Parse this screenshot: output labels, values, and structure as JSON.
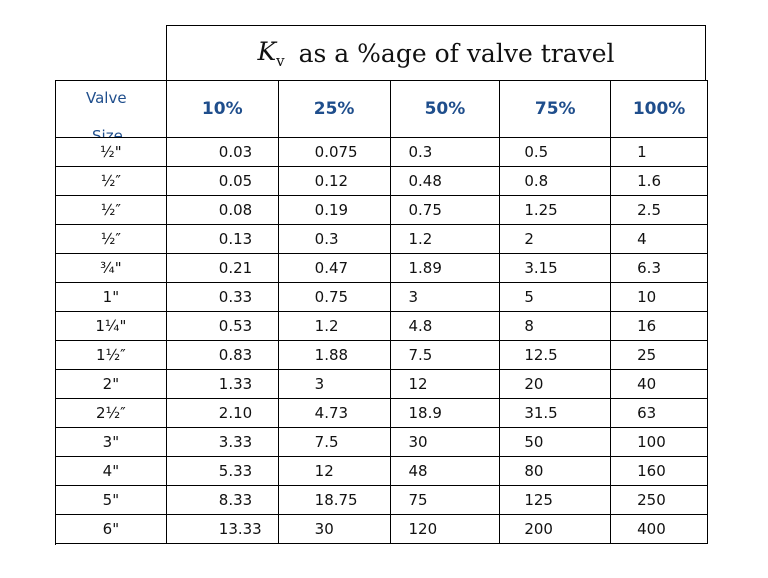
{
  "title": {
    "symbol": "K",
    "subscript": "v",
    "text": "as a %age of valve travel"
  },
  "header": {
    "first_col": "Valve",
    "first_col_cut": "Size",
    "columns": [
      "10%",
      "25%",
      "50%",
      "75%",
      "100%"
    ]
  },
  "rows": [
    {
      "size": "½\"",
      "values": [
        "0.03",
        "0.075",
        "0.3",
        "0.5",
        "1"
      ]
    },
    {
      "size": "½″",
      "values": [
        "0.05",
        "0.12",
        "0.48",
        "0.8",
        "1.6"
      ]
    },
    {
      "size": "½″",
      "values": [
        "0.08",
        "0.19",
        "0.75",
        "1.25",
        "2.5"
      ]
    },
    {
      "size": "½″",
      "values": [
        "0.13",
        "0.3",
        "1.2",
        "2",
        "4"
      ]
    },
    {
      "size": "¾\"",
      "values": [
        "0.21",
        "0.47",
        "1.89",
        "3.15",
        "6.3"
      ]
    },
    {
      "size": "1\"",
      "values": [
        "0.33",
        "0.75",
        "3",
        "5",
        "10"
      ]
    },
    {
      "size": "1¼\"",
      "values": [
        "0.53",
        "1.2",
        "4.8",
        "8",
        "16"
      ]
    },
    {
      "size": "1½″",
      "values": [
        "0.83",
        "1.88",
        "7.5",
        "12.5",
        "25"
      ]
    },
    {
      "size": "2\"",
      "values": [
        "1.33",
        "3",
        "12",
        "20",
        "40"
      ]
    },
    {
      "size": "2½″",
      "values": [
        "2.10",
        "4.73",
        "18.9",
        "31.5",
        "63"
      ]
    },
    {
      "size": "3\"",
      "values": [
        "3.33",
        "7.5",
        "30",
        "50",
        "100"
      ]
    },
    {
      "size": "4\"",
      "values": [
        "5.33",
        "12",
        "48",
        "80",
        "160"
      ]
    },
    {
      "size": "5\"",
      "values": [
        "8.33",
        "18.75",
        "75",
        "125",
        "250"
      ]
    },
    {
      "size": "6\"",
      "values": [
        "13.33",
        "30",
        "120",
        "200",
        "400"
      ]
    }
  ]
}
